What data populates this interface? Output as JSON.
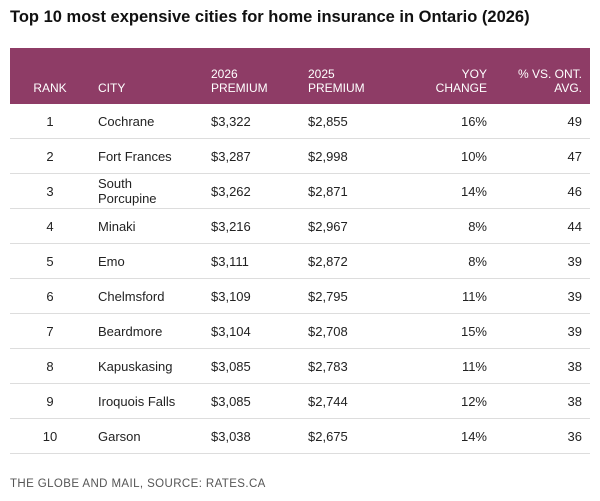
{
  "header": {
    "title": "Top 10 most expensive cities for home insurance in Ontario (2026)"
  },
  "table": {
    "columns": [
      "RANK",
      "CITY",
      "2026\nPREMIUM",
      "2025\nPREMIUM",
      "YOY\nCHANGE",
      "% VS. ONT.\nAVG."
    ],
    "rows": [
      [
        "1",
        "Cochrane",
        "$3,322",
        "$2,855",
        "16%",
        "49"
      ],
      [
        "2",
        "Fort Frances",
        "$3,287",
        "$2,998",
        "10%",
        "47"
      ],
      [
        "3",
        "South\nPorcupine",
        "$3,262",
        "$2,871",
        "14%",
        "46"
      ],
      [
        "4",
        "Minaki",
        "$3,216",
        "$2,967",
        "8%",
        "44"
      ],
      [
        "5",
        "Emo",
        "$3,111",
        "$2,872",
        "8%",
        "39"
      ],
      [
        "6",
        "Chelmsford",
        "$3,109",
        "$2,795",
        "11%",
        "39"
      ],
      [
        "7",
        "Beardmore",
        "$3,104",
        "$2,708",
        "15%",
        "39"
      ],
      [
        "8",
        "Kapuskasing",
        "$3,085",
        "$2,783",
        "11%",
        "38"
      ],
      [
        "9",
        "Iroquois Falls",
        "$3,085",
        "$2,744",
        "12%",
        "38"
      ],
      [
        "10",
        "Garson",
        "$3,038",
        "$2,675",
        "14%",
        "36"
      ]
    ]
  },
  "footer": {
    "source": "THE GLOBE AND MAIL, SOURCE: RATES.CA"
  }
}
